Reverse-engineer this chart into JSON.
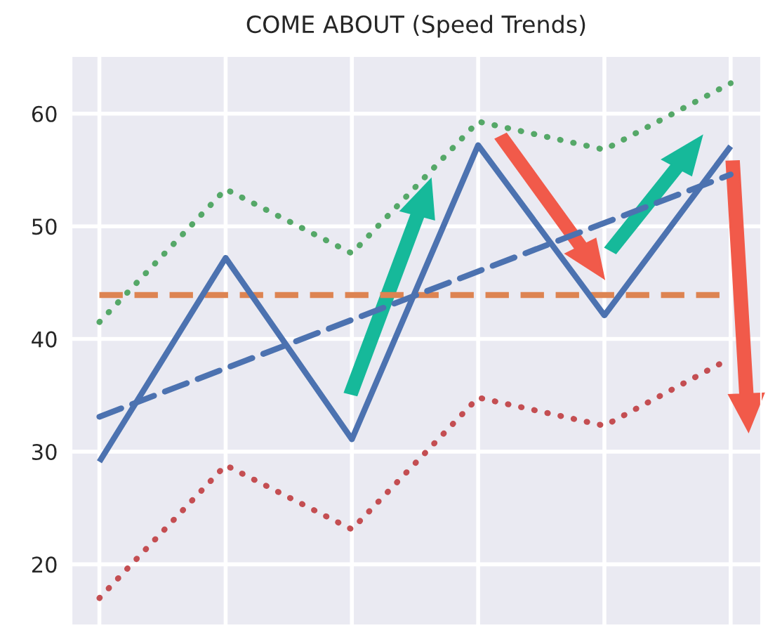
{
  "chart_data": {
    "type": "line",
    "title": "COME ABOUT (Speed Trends)",
    "categories": [
      null,
      null,
      null,
      null,
      null,
      null
    ],
    "series": [
      {
        "color": "#4c72b0",
        "line_style": "solid",
        "values": [
          29.1,
          47.2,
          31.1,
          57.2,
          42.1,
          57.1
        ]
      },
      {
        "color": "#55a868",
        "line_style": "dotted",
        "values": [
          41.5,
          53.3,
          47.6,
          59.3,
          56.8,
          62.7
        ]
      },
      {
        "color": "#c44e52",
        "line_style": "dotted",
        "values": [
          17.0,
          28.8,
          23.1,
          34.8,
          32.3,
          38.3
        ]
      },
      {
        "type": "line",
        "color": "#4c72b0",
        "line_style": "dashed",
        "values": [
          33.1,
          37.4,
          41.7,
          46.0,
          50.3,
          54.6
        ]
      }
    ],
    "ref_lines": [
      {
        "axis": "y",
        "value": 43.9,
        "color": "#dd8452",
        "line_style": "dashed"
      }
    ],
    "ylim": [
      14.6,
      65.1
    ],
    "yticks": [
      20,
      30,
      40,
      50,
      60
    ],
    "tick_labels": "y",
    "grid": true,
    "legend": false
  }
}
